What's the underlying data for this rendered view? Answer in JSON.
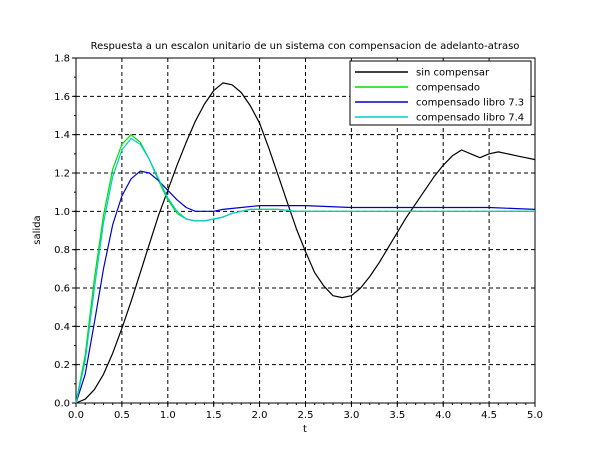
{
  "chart_data": {
    "type": "line",
    "title": "Respuesta a un escalon unitario de un sistema con compensacion de adelanto-atraso",
    "xlabel": "t",
    "ylabel": "salida",
    "xlim": [
      0,
      5
    ],
    "ylim": [
      0,
      1.8
    ],
    "xticks": [
      "0.0",
      "0.5",
      "1.0",
      "1.5",
      "2.0",
      "2.5",
      "3.0",
      "3.5",
      "4.0",
      "4.5",
      "5.0"
    ],
    "yticks": [
      "0.0",
      "0.2",
      "0.4",
      "0.6",
      "0.8",
      "1.0",
      "1.2",
      "1.4",
      "1.6",
      "1.8"
    ],
    "grid": true,
    "legend_position": "top-right",
    "series": [
      {
        "name": "sin compensar",
        "color": "#000000",
        "x": [
          0,
          0.1,
          0.2,
          0.3,
          0.4,
          0.5,
          0.6,
          0.7,
          0.8,
          0.9,
          1.0,
          1.1,
          1.2,
          1.3,
          1.4,
          1.5,
          1.6,
          1.7,
          1.8,
          1.9,
          2.0,
          2.1,
          2.2,
          2.3,
          2.4,
          2.5,
          2.6,
          2.7,
          2.8,
          2.9,
          3.0,
          3.1,
          3.2,
          3.3,
          3.4,
          3.5,
          3.6,
          3.7,
          3.8,
          3.9,
          4.0,
          4.1,
          4.2,
          4.3,
          4.4,
          4.5,
          4.6,
          4.7,
          4.8,
          4.9,
          5.0
        ],
        "y": [
          0,
          0.02,
          0.07,
          0.15,
          0.26,
          0.39,
          0.53,
          0.68,
          0.83,
          0.98,
          1.11,
          1.24,
          1.36,
          1.47,
          1.56,
          1.63,
          1.67,
          1.66,
          1.62,
          1.55,
          1.46,
          1.33,
          1.19,
          1.05,
          0.91,
          0.79,
          0.68,
          0.61,
          0.56,
          0.55,
          0.56,
          0.6,
          0.66,
          0.73,
          0.81,
          0.89,
          0.97,
          1.04,
          1.11,
          1.18,
          1.24,
          1.29,
          1.32,
          1.3,
          1.28,
          1.3,
          1.31,
          1.3,
          1.29,
          1.28,
          1.27
        ]
      },
      {
        "name": "compensado",
        "color": "#00dd00",
        "x": [
          0,
          0.1,
          0.2,
          0.3,
          0.4,
          0.5,
          0.6,
          0.7,
          0.8,
          0.9,
          1.0,
          1.1,
          1.2,
          1.3,
          1.4,
          1.5,
          1.6,
          1.7,
          1.8,
          1.9,
          2.0,
          2.2,
          2.4,
          2.6,
          2.8,
          3.0,
          3.5,
          4.0,
          4.5,
          5.0
        ],
        "y": [
          0,
          0.25,
          0.65,
          0.98,
          1.22,
          1.35,
          1.4,
          1.36,
          1.27,
          1.16,
          1.06,
          0.99,
          0.96,
          0.95,
          0.95,
          0.96,
          0.97,
          0.99,
          1.0,
          1.01,
          1.01,
          1.01,
          1.0,
          1.0,
          1.0,
          1.0,
          1.0,
          1.0,
          1.0,
          1.0
        ]
      },
      {
        "name": "compensado libro 7.3",
        "color": "#0000cc",
        "x": [
          0,
          0.1,
          0.2,
          0.3,
          0.4,
          0.5,
          0.6,
          0.7,
          0.8,
          0.9,
          1.0,
          1.1,
          1.2,
          1.3,
          1.4,
          1.5,
          1.6,
          1.8,
          2.0,
          2.2,
          2.5,
          3.0,
          3.5,
          4.0,
          4.5,
          5.0
        ],
        "y": [
          0,
          0.15,
          0.42,
          0.7,
          0.93,
          1.08,
          1.17,
          1.21,
          1.2,
          1.16,
          1.11,
          1.06,
          1.02,
          1.0,
          1.0,
          1.0,
          1.01,
          1.02,
          1.03,
          1.03,
          1.03,
          1.02,
          1.02,
          1.02,
          1.02,
          1.01
        ]
      },
      {
        "name": "compensado libro 7.4",
        "color": "#00cccc",
        "x": [
          0,
          0.1,
          0.2,
          0.3,
          0.4,
          0.5,
          0.6,
          0.7,
          0.8,
          0.9,
          1.0,
          1.1,
          1.2,
          1.3,
          1.4,
          1.5,
          1.6,
          1.7,
          1.8,
          1.9,
          2.0,
          2.2,
          2.4,
          2.6,
          2.8,
          3.0,
          3.5,
          4.0,
          4.5,
          5.0
        ],
        "y": [
          0,
          0.22,
          0.6,
          0.94,
          1.18,
          1.32,
          1.38,
          1.35,
          1.27,
          1.17,
          1.07,
          1.0,
          0.96,
          0.95,
          0.95,
          0.96,
          0.97,
          0.99,
          1.0,
          1.01,
          1.01,
          1.01,
          1.0,
          1.0,
          1.0,
          1.0,
          1.0,
          1.0,
          1.0,
          1.0
        ]
      }
    ]
  }
}
